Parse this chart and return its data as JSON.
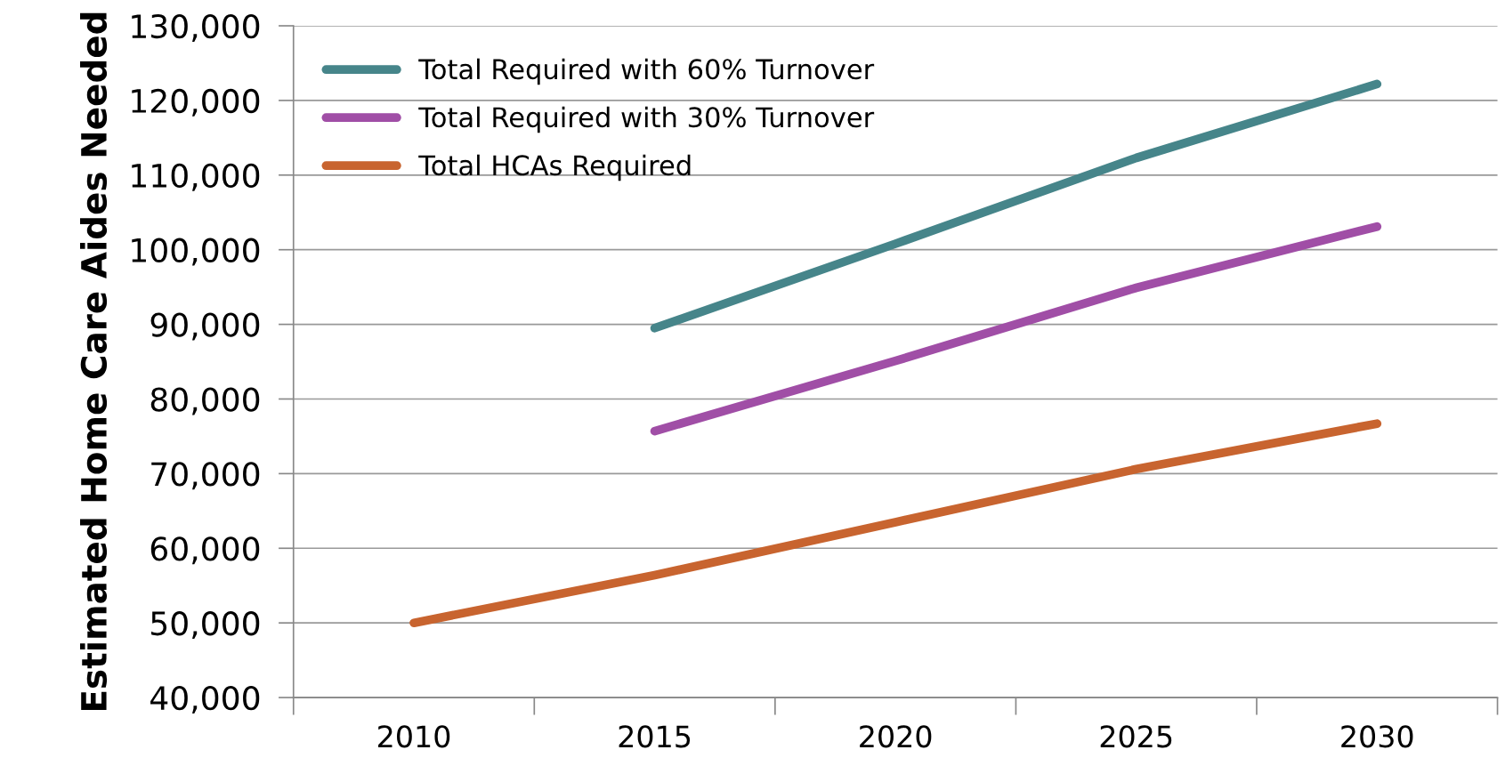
{
  "chart_data": {
    "type": "line",
    "ylabel": "Estimated Home Care Aides Needed",
    "categories": [
      "2010",
      "2015",
      "2020",
      "2025",
      "2030"
    ],
    "series": [
      {
        "name": "Total Required with 60% Turnover",
        "color": "#46858a",
        "values": [
          null,
          89500,
          100800,
          112300,
          122200
        ]
      },
      {
        "name": "Total Required with 30% Turnover",
        "color": "#a04ea6",
        "values": [
          null,
          75700,
          85100,
          94900,
          103100
        ]
      },
      {
        "name": "Total HCAs Required",
        "color": "#c8642f",
        "values": [
          50000,
          56400,
          63500,
          70600,
          76700
        ]
      }
    ],
    "ylim": [
      40000,
      130000
    ],
    "yticks": [
      {
        "value": 40000,
        "label": "40,000"
      },
      {
        "value": 50000,
        "label": "50,000"
      },
      {
        "value": 60000,
        "label": "60,000"
      },
      {
        "value": 70000,
        "label": "70,000"
      },
      {
        "value": 80000,
        "label": "80,000"
      },
      {
        "value": 90000,
        "label": "90,000"
      },
      {
        "value": 100000,
        "label": "100,000"
      },
      {
        "value": 110000,
        "label": "110,000"
      },
      {
        "value": 120000,
        "label": "120,000"
      },
      {
        "value": 130000,
        "label": "130,000"
      }
    ],
    "grid": "y",
    "legend": "top left",
    "marker": "none",
    "line_style": "solid"
  }
}
